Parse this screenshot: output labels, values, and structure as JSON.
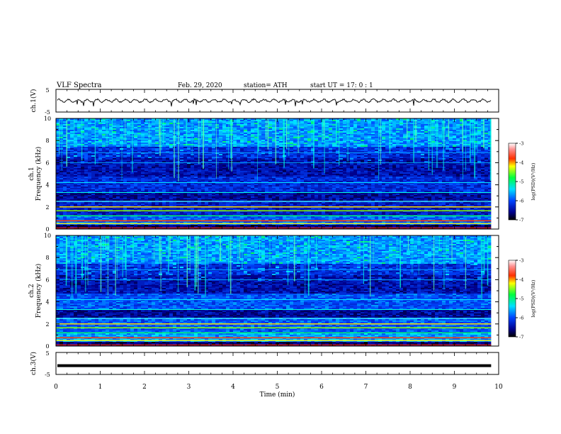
{
  "header": {
    "title": "VLF  Spectra",
    "date": "Feb. 29, 2020",
    "station": "station= ATH",
    "start": "start  UT  =    17: 0   : 1"
  },
  "chart_data": [
    {
      "type": "line",
      "name": "waveform",
      "ylabel": "ch.1(V)",
      "yticks": [
        "5",
        "-5"
      ],
      "ylim": [
        -5,
        5
      ],
      "baseline": 0,
      "amplitude": 0.6
    },
    {
      "type": "heatmap",
      "ylabel": "Frequency  (kHz)",
      "ylabel2": "ch.1",
      "ylim": [
        0,
        10
      ],
      "yticks": [
        "0",
        "2",
        "4",
        "6",
        "8",
        "10"
      ],
      "colorbar": {
        "label": "log(PSD)(V²/Hz)",
        "ticks": [
          "-3",
          "-4",
          "-5",
          "-6",
          "-7"
        ],
        "range": [
          -7,
          -3
        ]
      }
    },
    {
      "type": "heatmap",
      "ylabel": "Frequency  (kHz)",
      "ylabel2": "ch.2",
      "ylim": [
        0,
        10
      ],
      "yticks": [
        "0",
        "2",
        "4",
        "6",
        "8",
        "10"
      ],
      "colorbar": {
        "label": "log(PSD)(V²/Hz)",
        "ticks": [
          "-3",
          "-4",
          "-5",
          "-6",
          "-7"
        ],
        "range": [
          -7,
          -3
        ]
      }
    },
    {
      "type": "line",
      "name": "waveform",
      "ylabel": "ch.3(V)",
      "yticks": [
        "5",
        "-5"
      ],
      "ylim": [
        -5,
        5
      ],
      "baseline": -1.0,
      "amplitude": 0
    }
  ],
  "xaxis": {
    "label": "Time  (min)",
    "ticks": [
      "0",
      "1",
      "2",
      "3",
      "4",
      "5",
      "6",
      "7",
      "8",
      "9",
      "10"
    ],
    "xlim": [
      0,
      10
    ],
    "data_end": 9.83
  }
}
